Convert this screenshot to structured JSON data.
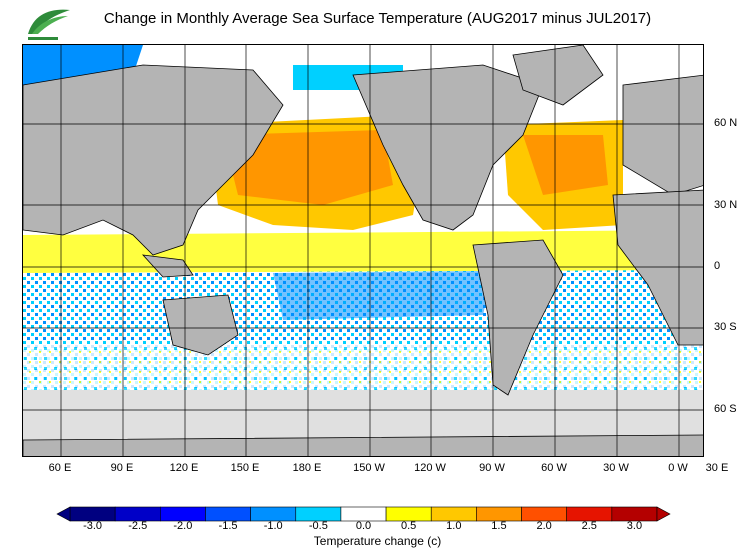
{
  "title": "Change in Monthly Average Sea Surface Temperature (AUG2017 minus JUL2017)",
  "map": {
    "lat_labels": [
      "60 N",
      "30 N",
      "0",
      "30 S",
      "60 S"
    ],
    "lon_labels": [
      "60 E",
      "90 E",
      "120 E",
      "150 E",
      "180 E",
      "150 W",
      "120 W",
      "90 W",
      "60 W",
      "30 W",
      "0 W",
      "30 E"
    ]
  },
  "colorbar": {
    "title": "Temperature change  (c)",
    "tick_labels": [
      "-3.0",
      "-2.5",
      "-2.0",
      "-1.5",
      "-1.0",
      "-0.5",
      "0.0",
      "0.5",
      "1.0",
      "1.5",
      "2.0",
      "2.5",
      "3.0"
    ],
    "colors": [
      "#000080",
      "#0000c8",
      "#0000ff",
      "#0050ff",
      "#0090ff",
      "#00d0ff",
      "#ffffff",
      "#ffff00",
      "#ffc800",
      "#ff9600",
      "#ff5000",
      "#e61400",
      "#b40000"
    ]
  }
}
